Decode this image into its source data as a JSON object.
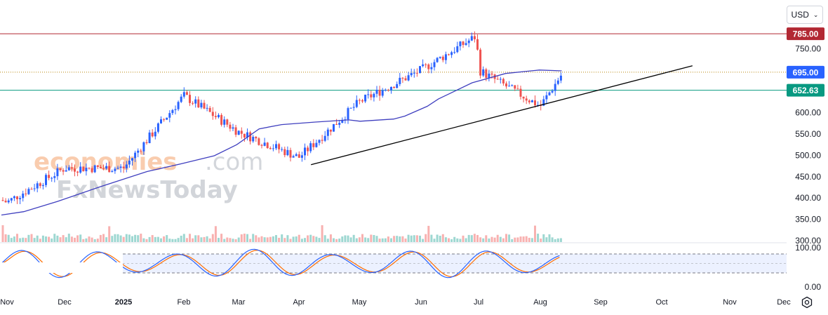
{
  "currency_selector": {
    "label": "USD",
    "chevron_icon": "chevron-down-icon"
  },
  "settings_icon": "gear-icon",
  "watermark": {
    "part1": "economies",
    "part2": ".com",
    "part3": "FxNewsToday"
  },
  "colors": {
    "up": "#2962ff",
    "down": "#ef5350",
    "ma": "#3f3fbf",
    "resistance": "#b22833",
    "support": "#089981",
    "current": "#2962ff",
    "trendline": "#000000",
    "stoch_k": "#2962ff",
    "stoch_d": "#ff6d00"
  },
  "chart_data": [
    {
      "type": "candlestick",
      "title": "",
      "price_axis": {
        "ticks": [
          300,
          350,
          400,
          450,
          500,
          550,
          600,
          650,
          700,
          750
        ],
        "labels": [
          "300.00",
          "350.00",
          "400.00",
          "450.00",
          "500.00",
          "550.00",
          "600.00",
          "650.00",
          "700.00",
          "750.00"
        ],
        "range": [
          300,
          800
        ]
      },
      "time_axis": {
        "labels": [
          "Nov",
          "Dec",
          "2025",
          "Feb",
          "Mar",
          "Apr",
          "May",
          "Jun",
          "Jul",
          "Aug",
          "Sep",
          "Oct",
          "Nov",
          "Dec"
        ]
      },
      "ohlc_summary": [
        {
          "date": "2024-11",
          "close": 390
        },
        {
          "date": "2024-12",
          "close": 470
        },
        {
          "date": "2025-01",
          "close": 470
        },
        {
          "date": "2025-02",
          "close": 640
        },
        {
          "date": "2025-03",
          "close": 555
        },
        {
          "date": "2025-04",
          "close": 495
        },
        {
          "date": "2025-05",
          "close": 625
        },
        {
          "date": "2025-06",
          "close": 700
        },
        {
          "date": "2025-06-30",
          "close": 780
        },
        {
          "date": "2025-07",
          "close": 700
        },
        {
          "date": "2025-08-01",
          "close": 615
        },
        {
          "date": "2025-08-12",
          "close": 690
        }
      ],
      "moving_average": {
        "points": [
          [
            0,
            360
          ],
          [
            2,
            368
          ],
          [
            5,
            392
          ],
          [
            9,
            428
          ],
          [
            13,
            462
          ],
          [
            16,
            480
          ],
          [
            19,
            499
          ],
          [
            21,
            525
          ],
          [
            23,
            562
          ],
          [
            25,
            572
          ],
          [
            28,
            578
          ],
          [
            31,
            583
          ],
          [
            32,
            580
          ],
          [
            35,
            585
          ],
          [
            36,
            592
          ],
          [
            38,
            615
          ],
          [
            39,
            632
          ],
          [
            42,
            670
          ],
          [
            45,
            692
          ],
          [
            48,
            700
          ],
          [
            49,
            699
          ],
          [
            50,
            698
          ]
        ]
      },
      "horizontal_levels": [
        {
          "label": "785.00",
          "value": 785,
          "kind": "resistance"
        },
        {
          "label": "695.00",
          "value": 695,
          "kind": "current"
        },
        {
          "label": "652.63",
          "value": 652.63,
          "kind": "support"
        }
      ],
      "trendline": {
        "from": {
          "date": "2025-04-07",
          "value": 478
        },
        "to": {
          "date": "2025-10-15",
          "value": 710
        }
      },
      "volume": "relative bars at bottom of price pane"
    },
    {
      "type": "line",
      "title": "",
      "indicator": "stochastic",
      "axis": {
        "labels": [
          "100.00",
          "0.00"
        ],
        "range": [
          0,
          100
        ]
      },
      "bands": {
        "upper": 80,
        "lower": 20
      }
    }
  ]
}
